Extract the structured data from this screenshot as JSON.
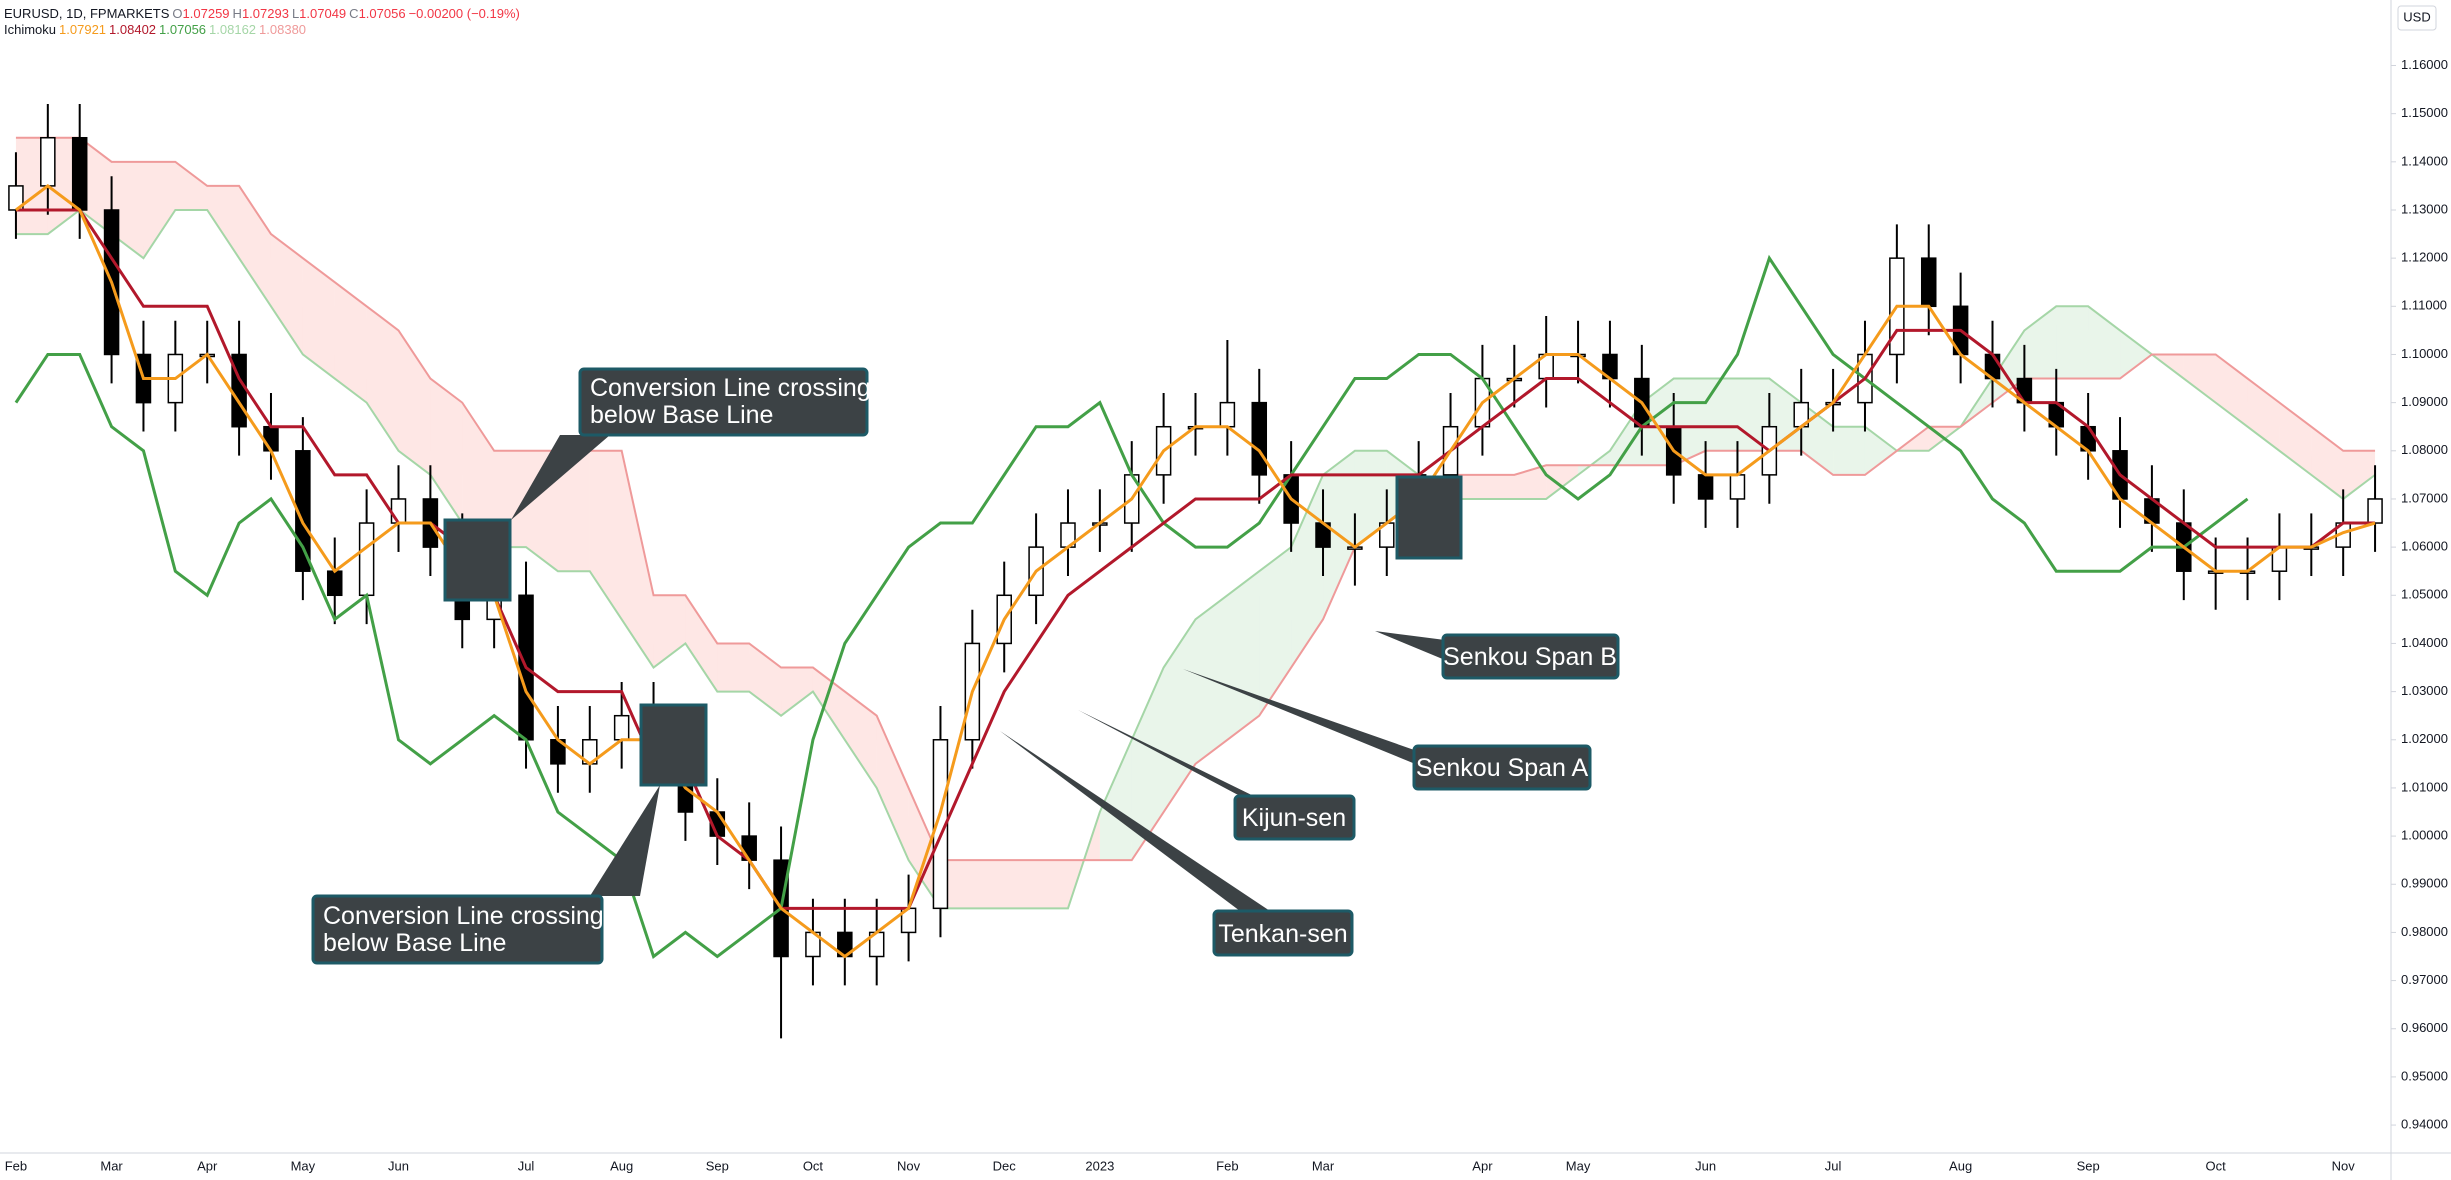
{
  "chart_data": {
    "type": "ichimoku",
    "symbol": "EURUSD, 1D, FPMARKETS",
    "quote": [
      {
        "label": "O",
        "value": 1.07259
      },
      {
        "label": "H",
        "value": 1.07293
      },
      {
        "label": "L",
        "value": 1.07049
      },
      {
        "label": "C",
        "value": 1.07056
      }
    ],
    "change": "−0.00200 (−0.19%)",
    "indicator": {
      "name": "Ichimoku",
      "values": [
        1.07921,
        1.08402,
        1.07056,
        1.08162,
        {
          "value": 1.0838,
          "label": "1.08380"
        }
      ]
    },
    "currency": "USD",
    "categories": [
      "Feb",
      null,
      null,
      "Mar",
      null,
      null,
      "Apr",
      null,
      null,
      "May",
      null,
      null,
      "Jun",
      null,
      null,
      null,
      "Jul",
      null,
      null,
      "Aug",
      null,
      null,
      "Sep",
      null,
      null,
      "Oct",
      null,
      null,
      "Nov",
      null,
      null,
      "Dec",
      null,
      null,
      "2023",
      null,
      null,
      null,
      "Feb",
      null,
      null,
      "Mar",
      null,
      null,
      null,
      null,
      "Apr",
      null,
      null,
      "May",
      null,
      null,
      null,
      "Jun",
      null,
      null,
      null,
      "Jul",
      null,
      null,
      null,
      "Aug",
      null,
      null,
      null,
      "Sep",
      null,
      null,
      null,
      "Oct",
      null,
      null,
      null,
      "Nov",
      null
    ],
    "open": [
      1.13,
      1.135,
      1.145,
      1.13,
      1.1,
      1.09,
      1.1,
      1.1,
      1.085,
      1.08,
      1.055,
      1.05,
      1.065,
      1.07,
      1.06,
      1.045,
      1.05,
      1.02,
      1.015,
      1.02,
      1.025,
      1.02,
      1.005,
      1.0,
      0.995,
      0.975,
      0.98,
      0.975,
      0.98,
      0.985,
      1.02,
      1.04,
      1.05,
      1.06,
      1.065,
      1.065,
      1.075,
      1.085,
      1.085,
      1.09,
      1.075,
      1.065,
      1.06,
      1.06,
      1.065,
      1.075,
      1.085,
      1.095,
      1.095,
      1.1,
      1.1,
      1.095,
      1.085,
      1.075,
      1.07,
      1.075,
      1.085,
      1.09,
      1.09,
      1.1,
      1.12,
      1.11,
      1.1,
      1.095,
      1.09,
      1.085,
      1.08,
      1.07,
      1.065,
      1.055,
      1.055,
      1.055,
      1.06,
      1.06,
      1.065
    ],
    "high": [
      1.142,
      1.152,
      1.152,
      1.137,
      1.107,
      1.107,
      1.107,
      1.107,
      1.092,
      1.087,
      1.062,
      1.072,
      1.077,
      1.077,
      1.067,
      1.057,
      1.057,
      1.027,
      1.027,
      1.032,
      1.032,
      1.027,
      1.012,
      1.007,
      1.002,
      0.987,
      0.987,
      0.987,
      0.992,
      1.027,
      1.047,
      1.057,
      1.067,
      1.072,
      1.072,
      1.082,
      1.092,
      1.092,
      1.103,
      1.097,
      1.082,
      1.072,
      1.067,
      1.072,
      1.082,
      1.092,
      1.102,
      1.102,
      1.108,
      1.107,
      1.107,
      1.102,
      1.092,
      1.082,
      1.082,
      1.092,
      1.097,
      1.097,
      1.107,
      1.127,
      1.127,
      1.117,
      1.107,
      1.102,
      1.097,
      1.092,
      1.087,
      1.077,
      1.072,
      1.062,
      1.062,
      1.067,
      1.067,
      1.072,
      1.077
    ],
    "low": [
      1.124,
      1.129,
      1.124,
      1.094,
      1.084,
      1.084,
      1.094,
      1.079,
      1.074,
      1.049,
      1.044,
      1.044,
      1.059,
      1.054,
      1.039,
      1.039,
      1.014,
      1.009,
      1.009,
      1.014,
      1.014,
      0.999,
      0.994,
      0.989,
      0.958,
      0.969,
      0.969,
      0.969,
      0.974,
      0.979,
      1.014,
      1.034,
      1.044,
      1.054,
      1.059,
      1.059,
      1.069,
      1.079,
      1.079,
      1.069,
      1.059,
      1.054,
      1.052,
      1.054,
      1.059,
      1.069,
      1.079,
      1.089,
      1.089,
      1.094,
      1.089,
      1.079,
      1.069,
      1.064,
      1.064,
      1.069,
      1.079,
      1.084,
      1.084,
      1.094,
      1.104,
      1.094,
      1.089,
      1.084,
      1.079,
      1.074,
      1.064,
      1.059,
      1.049,
      1.047,
      1.049,
      1.049,
      1.054,
      1.054,
      1.059
    ],
    "close": [
      1.135,
      1.145,
      1.13,
      1.1,
      1.09,
      1.1,
      1.1,
      1.085,
      1.08,
      1.055,
      1.05,
      1.065,
      1.07,
      1.06,
      1.045,
      1.05,
      1.02,
      1.015,
      1.02,
      1.025,
      1.02,
      1.005,
      1.0,
      0.995,
      0.975,
      0.98,
      0.975,
      0.98,
      0.985,
      1.02,
      1.04,
      1.05,
      1.06,
      1.065,
      1.065,
      1.075,
      1.085,
      1.085,
      1.09,
      1.075,
      1.065,
      1.06,
      1.06,
      1.065,
      1.075,
      1.085,
      1.095,
      1.095,
      1.1,
      1.1,
      1.095,
      1.085,
      1.075,
      1.07,
      1.075,
      1.085,
      1.09,
      1.09,
      1.1,
      1.12,
      1.11,
      1.1,
      1.095,
      1.09,
      1.085,
      1.08,
      1.07,
      1.065,
      1.055,
      1.055,
      1.055,
      1.06,
      1.06,
      1.065,
      1.07
    ],
    "series": [
      {
        "name": "Tenkan-sen",
        "color": "#f59b1c",
        "values": [
          1.13,
          1.135,
          1.13,
          1.115,
          1.095,
          1.095,
          1.1,
          1.09,
          1.08,
          1.065,
          1.055,
          1.06,
          1.065,
          1.065,
          1.055,
          1.05,
          1.03,
          1.02,
          1.015,
          1.02,
          1.02,
          1.01,
          1.005,
          0.995,
          0.985,
          0.98,
          0.975,
          0.98,
          0.985,
          1.005,
          1.03,
          1.045,
          1.055,
          1.06,
          1.065,
          1.07,
          1.08,
          1.085,
          1.085,
          1.08,
          1.07,
          1.065,
          1.06,
          1.065,
          1.07,
          1.08,
          1.09,
          1.095,
          1.1,
          1.1,
          1.095,
          1.09,
          1.08,
          1.075,
          1.075,
          1.08,
          1.085,
          1.09,
          1.1,
          1.11,
          1.11,
          1.1,
          1.095,
          1.09,
          1.085,
          1.08,
          1.07,
          1.065,
          1.06,
          1.055,
          1.055,
          1.06,
          1.06,
          1.063,
          1.065
        ]
      },
      {
        "name": "Kijun-sen",
        "color": "#b2182b",
        "values": [
          1.13,
          1.13,
          1.13,
          1.12,
          1.11,
          1.11,
          1.11,
          1.095,
          1.085,
          1.085,
          1.075,
          1.075,
          1.065,
          1.065,
          1.06,
          1.05,
          1.035,
          1.03,
          1.03,
          1.03,
          1.015,
          1.015,
          1.0,
          0.995,
          0.985,
          0.985,
          0.985,
          0.985,
          0.985,
          1.0,
          1.015,
          1.03,
          1.04,
          1.05,
          1.055,
          1.06,
          1.065,
          1.07,
          1.07,
          1.07,
          1.075,
          1.075,
          1.075,
          1.075,
          1.075,
          1.08,
          1.085,
          1.09,
          1.095,
          1.095,
          1.09,
          1.085,
          1.085,
          1.085,
          1.085,
          1.08,
          1.085,
          1.09,
          1.095,
          1.105,
          1.105,
          1.105,
          1.1,
          1.09,
          1.09,
          1.085,
          1.075,
          1.07,
          1.065,
          1.06,
          1.06,
          1.06,
          1.06,
          1.065,
          1.065
        ]
      },
      {
        "color": "#43a047",
        "values": [
          1.09,
          1.1,
          1.1,
          1.085,
          1.08,
          1.055,
          1.05,
          1.065,
          1.07,
          1.06,
          1.045,
          1.05,
          1.02,
          1.015,
          1.02,
          1.025,
          1.02,
          1.005,
          1.0,
          0.995,
          0.975,
          0.98,
          0.975,
          0.98,
          0.985,
          1.02,
          1.04,
          1.05,
          1.06,
          1.065,
          1.065,
          1.075,
          1.085,
          1.085,
          1.09,
          1.075,
          1.065,
          1.06,
          1.06,
          1.065,
          1.075,
          1.085,
          1.095,
          1.095,
          1.1,
          1.1,
          1.095,
          1.085,
          1.075,
          1.07,
          1.075,
          1.085,
          1.09,
          1.09,
          1.1,
          1.12,
          1.11,
          1.1,
          1.095,
          1.09,
          1.085,
          1.08,
          1.07,
          1.065,
          1.055,
          1.055,
          1.055,
          1.06,
          1.06,
          1.065,
          1.07,
          null,
          null,
          null,
          null
        ]
      },
      {
        "name": "Senkou Span A",
        "color": "#a5d6a7",
        "values": [
          1.125,
          1.125,
          1.13,
          1.125,
          1.12,
          1.13,
          1.13,
          1.12,
          1.11,
          1.1,
          1.095,
          1.09,
          1.08,
          1.075,
          1.065,
          1.06,
          1.06,
          1.055,
          1.055,
          1.045,
          1.035,
          1.04,
          1.03,
          1.03,
          1.025,
          1.03,
          1.02,
          1.01,
          0.995,
          0.985,
          0.985,
          0.985,
          0.985,
          0.985,
          1.005,
          1.02,
          1.035,
          1.045,
          1.05,
          1.055,
          1.06,
          1.075,
          1.08,
          1.08,
          1.075,
          1.07,
          1.07,
          1.07,
          1.07,
          1.075,
          1.08,
          1.09,
          1.095,
          1.095,
          1.095,
          1.095,
          1.09,
          1.085,
          1.085,
          1.08,
          1.08,
          1.085,
          1.095,
          1.105,
          1.11,
          1.11,
          1.105,
          1.1,
          1.095,
          1.09,
          1.085,
          1.08,
          1.075,
          1.07,
          1.075
        ]
      },
      {
        "name": "Senkou Span B",
        "color": "#ef9a9a",
        "values": [
          1.145,
          1.145,
          1.145,
          1.14,
          1.14,
          1.14,
          1.135,
          1.135,
          1.125,
          1.12,
          1.115,
          1.11,
          1.105,
          1.095,
          1.09,
          1.08,
          1.08,
          1.08,
          1.08,
          1.08,
          1.05,
          1.05,
          1.04,
          1.04,
          1.035,
          1.035,
          1.03,
          1.025,
          1.01,
          0.995,
          0.995,
          0.995,
          0.995,
          0.995,
          0.995,
          0.995,
          1.005,
          1.015,
          1.02,
          1.025,
          1.035,
          1.045,
          1.06,
          1.065,
          1.07,
          1.075,
          1.075,
          1.075,
          1.077,
          1.077,
          1.077,
          1.077,
          1.077,
          1.08,
          1.08,
          1.08,
          1.08,
          1.075,
          1.075,
          1.08,
          1.085,
          1.085,
          1.09,
          1.095,
          1.095,
          1.095,
          1.095,
          1.1,
          1.1,
          1.1,
          1.095,
          1.09,
          1.085,
          1.08,
          1.08
        ]
      }
    ],
    "annotations": [
      {
        "lines": [
          "Conversion Line crossing",
          "below Base Line"
        ]
      },
      {
        "lines": [
          "Conversion Line crossing",
          "below Base Line"
        ]
      }
    ],
    "ylim": [
      0.9342,
      1.1736
    ],
    "yticks": [
      {
        "value": 0.94,
        "label": "0.94000"
      },
      {
        "value": 0.95,
        "label": "0.95000"
      },
      {
        "value": 0.96,
        "label": "0.96000"
      },
      {
        "value": 0.97,
        "label": "0.97000"
      },
      {
        "value": 0.98,
        "label": "0.98000"
      },
      {
        "value": 0.99,
        "label": "0.99000"
      },
      {
        "value": 1.0,
        "label": "1.00000"
      },
      {
        "value": 1.01,
        "label": "1.01000"
      },
      {
        "value": 1.02,
        "label": "1.02000"
      },
      {
        "value": 1.03,
        "label": "1.03000"
      },
      {
        "value": 1.04,
        "label": "1.04000"
      },
      {
        "value": 1.05,
        "label": "1.05000"
      },
      {
        "value": 1.06,
        "label": "1.06000"
      },
      {
        "value": 1.07,
        "label": "1.07000"
      },
      {
        "value": 1.08,
        "label": "1.08000"
      },
      {
        "value": 1.09,
        "label": "1.09000"
      },
      {
        "value": 1.1,
        "label": "1.10000"
      },
      {
        "value": 1.11,
        "label": "1.11000"
      },
      {
        "value": 1.12,
        "label": "1.12000"
      },
      {
        "value": 1.13,
        "label": "1.13000"
      },
      {
        "value": 1.14,
        "label": "1.14000"
      },
      {
        "value": 1.15,
        "label": "1.15000"
      },
      {
        "value": 1.16,
        "label": "1.16000"
      }
    ],
    "grid": false
  }
}
